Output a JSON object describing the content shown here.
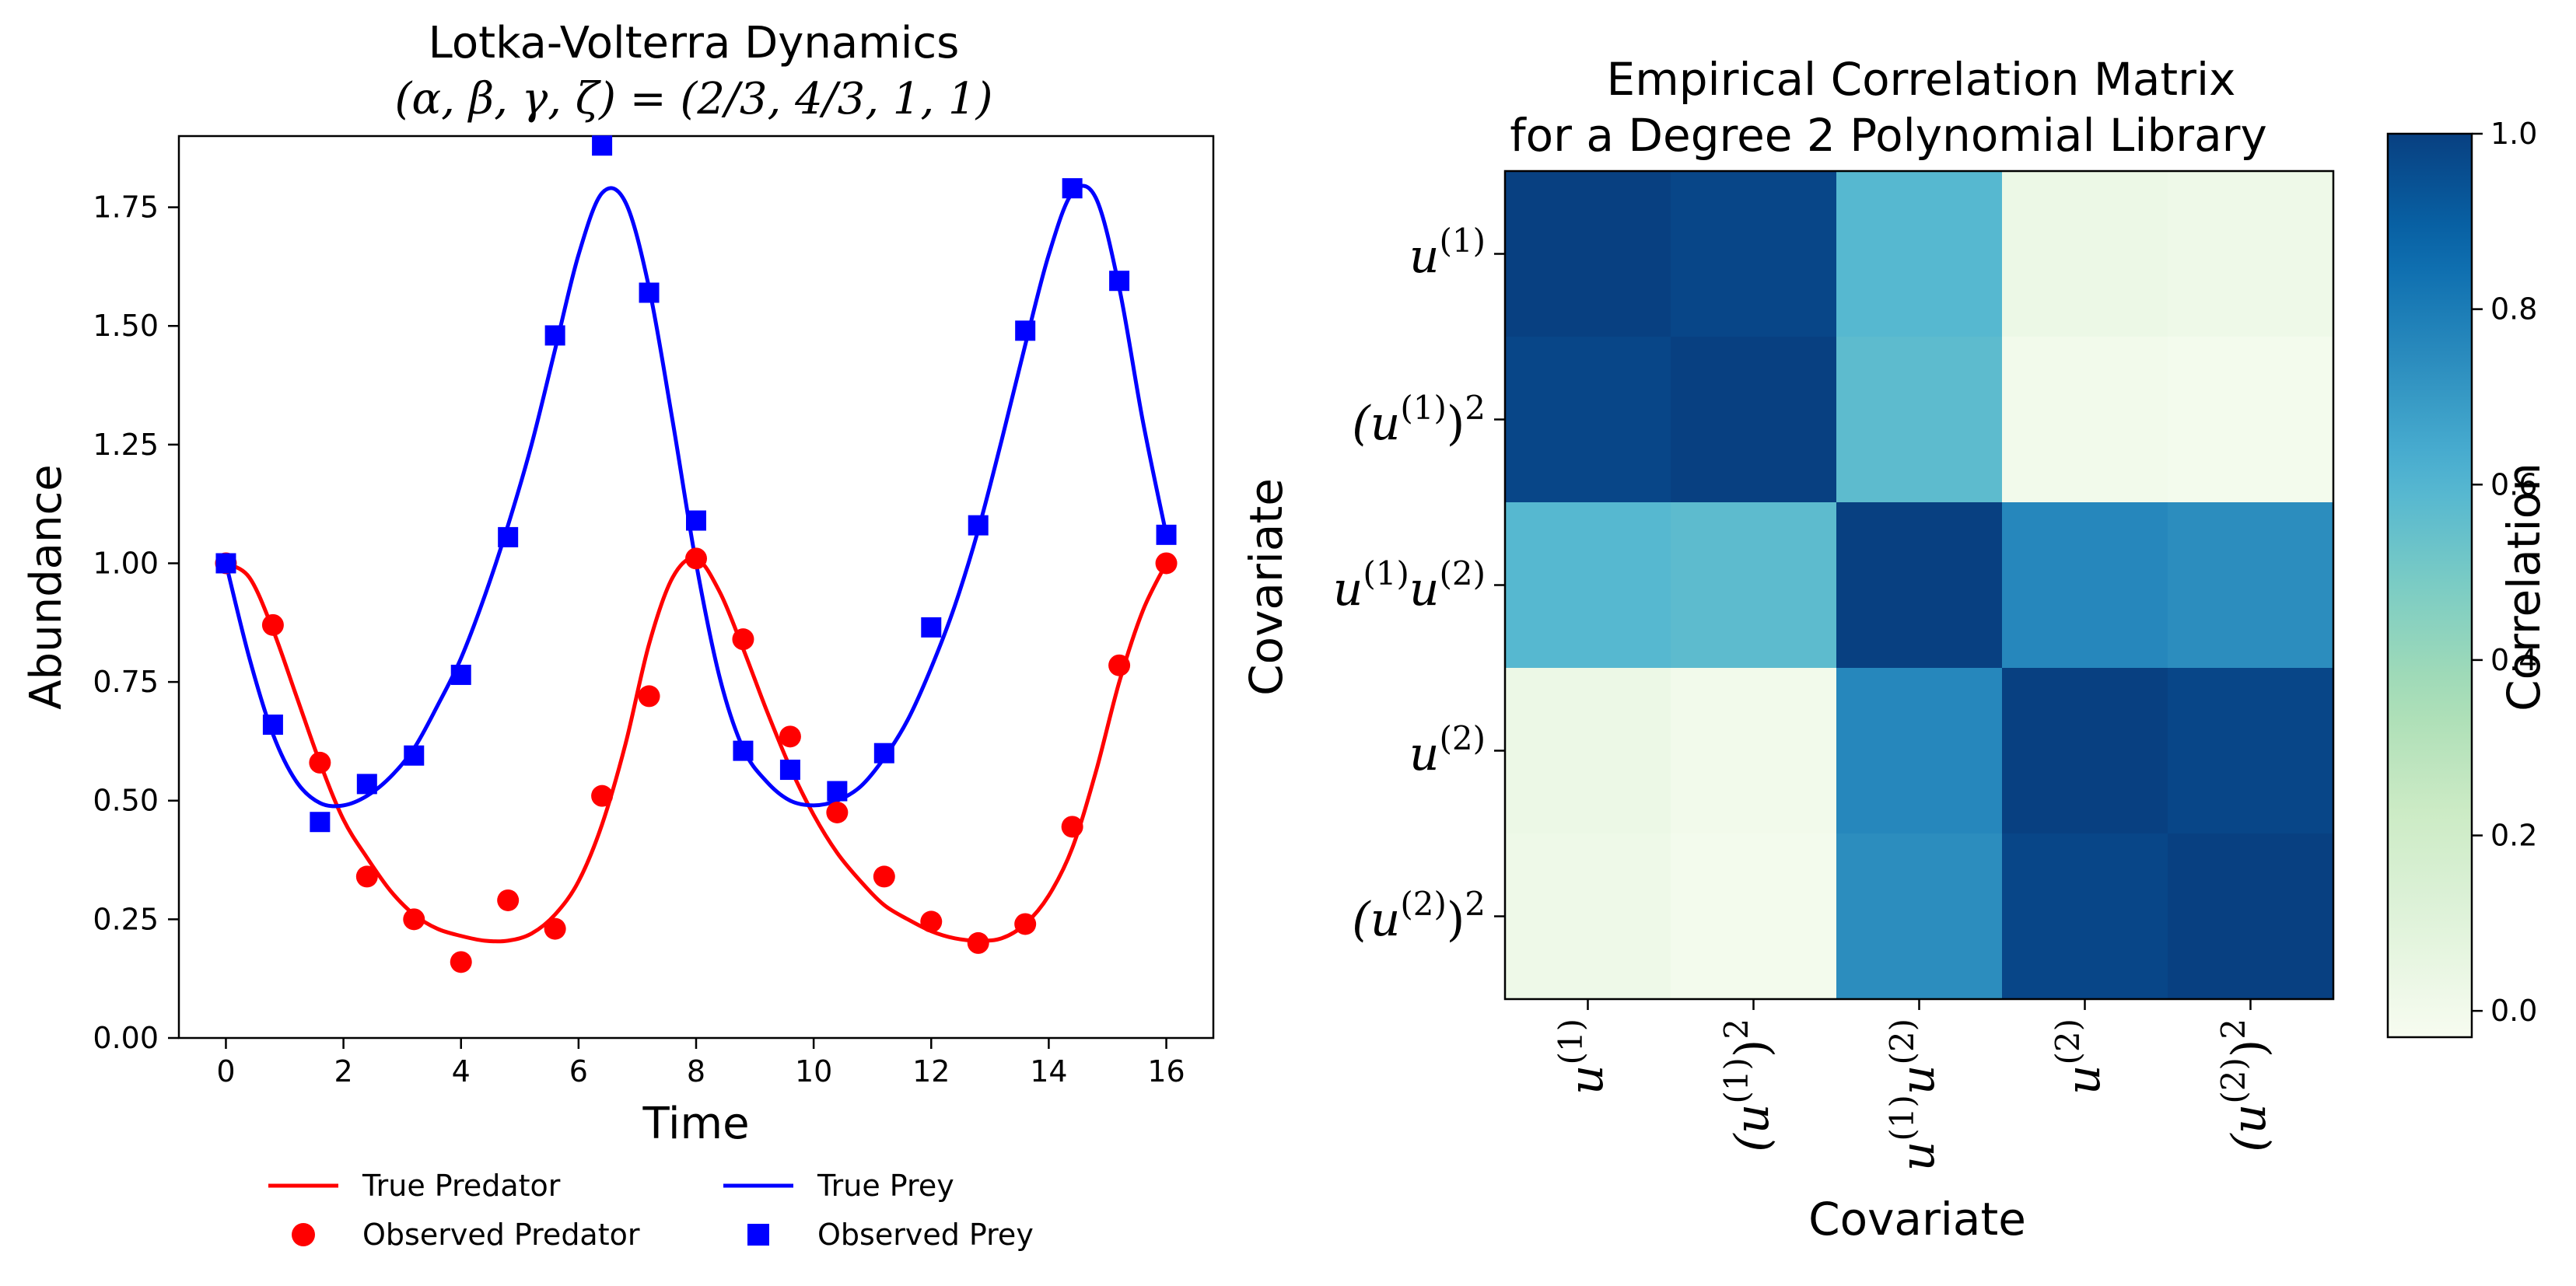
{
  "chart_data": [
    {
      "type": "line",
      "title": "Lotka-Volterra Dynamics",
      "subtitle": "(α, β, γ, ζ) = (2/3, 4/3, 1, 1)",
      "xlabel": "Time",
      "ylabel": "Abundance",
      "xlim": [
        -0.8,
        16.8
      ],
      "ylim": [
        0.0,
        1.9
      ],
      "xticks": [
        0,
        2,
        4,
        6,
        8,
        10,
        12,
        14,
        16
      ],
      "xtick_labels": [
        "0",
        "2",
        "4",
        "6",
        "8",
        "10",
        "12",
        "14",
        "16"
      ],
      "yticks": [
        0.0,
        0.25,
        0.5,
        0.75,
        1.0,
        1.25,
        1.5,
        1.75
      ],
      "ytick_labels": [
        "0.00",
        "0.25",
        "0.50",
        "0.75",
        "1.00",
        "1.25",
        "1.50",
        "1.75"
      ],
      "grid": false,
      "legend_position": "bottom-center",
      "colors": {
        "predator": "#ff0000",
        "prey": "#0000ff"
      },
      "series": [
        {
          "name": "True Predator",
          "kind": "line",
          "color": "#ff0000",
          "x": [
            0,
            0.4,
            0.8,
            1.2,
            1.6,
            2.0,
            2.4,
            2.8,
            3.2,
            3.6,
            4.0,
            4.4,
            4.8,
            5.2,
            5.6,
            6.0,
            6.4,
            6.8,
            7.2,
            7.6,
            8.0,
            8.4,
            8.8,
            9.2,
            9.6,
            10.0,
            10.4,
            10.8,
            11.2,
            11.6,
            12.0,
            12.4,
            12.8,
            13.2,
            13.6,
            14.0,
            14.4,
            14.8,
            15.2,
            15.6,
            16.0
          ],
          "y": [
            1.0,
            0.97,
            0.86,
            0.72,
            0.58,
            0.46,
            0.38,
            0.31,
            0.26,
            0.23,
            0.215,
            0.205,
            0.205,
            0.22,
            0.26,
            0.33,
            0.45,
            0.62,
            0.83,
            0.97,
            1.01,
            0.94,
            0.82,
            0.69,
            0.57,
            0.47,
            0.39,
            0.33,
            0.28,
            0.25,
            0.225,
            0.21,
            0.205,
            0.21,
            0.24,
            0.3,
            0.4,
            0.56,
            0.75,
            0.9,
            1.0
          ]
        },
        {
          "name": "True Prey",
          "kind": "line",
          "color": "#0000ff",
          "x": [
            0,
            0.4,
            0.8,
            1.2,
            1.6,
            2.0,
            2.4,
            2.8,
            3.2,
            3.6,
            4.0,
            4.4,
            4.8,
            5.2,
            5.6,
            6.0,
            6.4,
            6.8,
            7.2,
            7.6,
            8.0,
            8.4,
            8.8,
            9.2,
            9.6,
            10.0,
            10.4,
            10.8,
            11.2,
            11.6,
            12.0,
            12.4,
            12.8,
            13.2,
            13.6,
            14.0,
            14.4,
            14.8,
            15.2,
            15.6,
            16.0
          ],
          "y": [
            1.0,
            0.8,
            0.64,
            0.54,
            0.495,
            0.49,
            0.51,
            0.55,
            0.61,
            0.7,
            0.8,
            0.93,
            1.08,
            1.25,
            1.45,
            1.65,
            1.78,
            1.76,
            1.58,
            1.3,
            1.0,
            0.76,
            0.61,
            0.54,
            0.5,
            0.49,
            0.5,
            0.53,
            0.59,
            0.67,
            0.78,
            0.91,
            1.07,
            1.26,
            1.46,
            1.65,
            1.78,
            1.77,
            1.58,
            1.3,
            1.06
          ]
        },
        {
          "name": "Observed Predator",
          "kind": "scatter",
          "marker": "circle",
          "color": "#ff0000",
          "x": [
            0,
            0.8,
            1.6,
            2.4,
            3.2,
            4.0,
            4.8,
            5.6,
            6.4,
            7.2,
            8.0,
            8.8,
            9.6,
            10.4,
            11.2,
            12.0,
            12.8,
            13.6,
            14.4,
            15.2,
            16.0
          ],
          "y": [
            1.0,
            0.87,
            0.58,
            0.34,
            0.25,
            0.16,
            0.29,
            0.23,
            0.51,
            0.72,
            1.01,
            0.84,
            0.635,
            0.475,
            0.34,
            0.245,
            0.2,
            0.24,
            0.445,
            0.785,
            1.0
          ]
        },
        {
          "name": "Observed Prey",
          "kind": "scatter",
          "marker": "square",
          "color": "#0000ff",
          "x": [
            0,
            0.8,
            1.6,
            2.4,
            3.2,
            4.0,
            4.8,
            5.6,
            6.4,
            7.2,
            8.0,
            8.8,
            9.6,
            10.4,
            11.2,
            12.0,
            12.8,
            13.6,
            14.4,
            15.2,
            16.0
          ],
          "y": [
            1.0,
            0.66,
            0.455,
            0.535,
            0.595,
            0.765,
            1.055,
            1.48,
            1.88,
            1.57,
            1.09,
            0.605,
            0.565,
            0.52,
            0.6,
            0.865,
            1.08,
            1.49,
            1.79,
            1.595,
            1.06
          ]
        }
      ],
      "legend": [
        {
          "label": "True Predator",
          "type": "line",
          "color": "#ff0000"
        },
        {
          "label": "True Prey",
          "type": "line",
          "color": "#0000ff"
        },
        {
          "label": "Observed Predator",
          "type": "circle",
          "color": "#ff0000"
        },
        {
          "label": "Observed Prey",
          "type": "square",
          "color": "#0000ff"
        }
      ]
    },
    {
      "type": "heatmap",
      "title": "Empirical Correlation Matrix",
      "subtitle": "for a Degree 2 Polynomial Library",
      "xlabel": "Covariate",
      "ylabel": "Covariate",
      "colorbar_label": "Correlation",
      "colormap": "GnBu",
      "vmin": -0.03,
      "vmax": 1.0,
      "colorbar_ticks": [
        0.0,
        0.2,
        0.4,
        0.6,
        0.8,
        1.0
      ],
      "colorbar_tick_labels": [
        "0.0",
        "0.2",
        "0.4",
        "0.6",
        "0.8",
        "1.0"
      ],
      "colormap_stops": [
        {
          "v": 0.0,
          "color": "#f7fcf0"
        },
        {
          "v": 0.125,
          "color": "#e0f3db"
        },
        {
          "v": 0.25,
          "color": "#ccebc5"
        },
        {
          "v": 0.375,
          "color": "#a8ddb5"
        },
        {
          "v": 0.5,
          "color": "#7bccc4"
        },
        {
          "v": 0.625,
          "color": "#4eb3d3"
        },
        {
          "v": 0.75,
          "color": "#2b8cbe"
        },
        {
          "v": 0.875,
          "color": "#0868ac"
        },
        {
          "v": 1.0,
          "color": "#084081"
        }
      ],
      "row_labels": [
        {
          "base": "u",
          "sup": "(1)",
          "pow": ""
        },
        {
          "base": "(u",
          "sup": "(1)",
          "pow": ")2"
        },
        {
          "base": "u",
          "sup": "(1)",
          "pow": "u(2)"
        },
        {
          "base": "u",
          "sup": "(2)",
          "pow": ""
        },
        {
          "base": "(u",
          "sup": "(2)",
          "pow": ")2"
        }
      ],
      "label_text": {
        "u1": {
          "a": "u",
          "b": "(1)"
        },
        "u1sq": {
          "a": "(u",
          "b": "(1)",
          "c": ")",
          "d": "2"
        },
        "u1u2": {
          "a": "u",
          "b": "(1)",
          "c": "u",
          "d": "(2)"
        },
        "u2": {
          "a": "u",
          "b": "(2)"
        },
        "u2sq": {
          "a": "(u",
          "b": "(2)",
          "c": ")",
          "d": "2"
        }
      },
      "matrix": [
        [
          1.0,
          0.98,
          0.59,
          0.03,
          0.02
        ],
        [
          0.98,
          1.0,
          0.57,
          0.0,
          -0.01
        ],
        [
          0.59,
          0.57,
          1.0,
          0.76,
          0.74
        ],
        [
          0.03,
          0.0,
          0.76,
          1.0,
          0.98
        ],
        [
          0.02,
          -0.01,
          0.74,
          0.98,
          1.0
        ]
      ]
    }
  ]
}
